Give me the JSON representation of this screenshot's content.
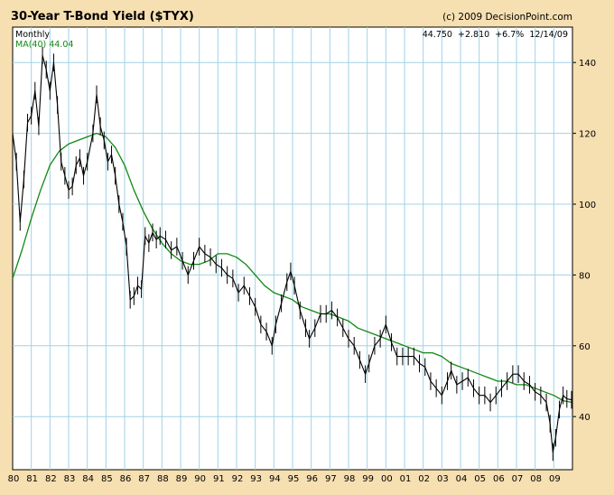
{
  "header": {
    "title": "30-Year T-Bond Yield ($TYX)",
    "copyright": "(c) 2009 DecisionPoint.com"
  },
  "info": {
    "period": "Monthly",
    "ma_label": "MA(40) 44.04",
    "quote": "44.750  +2.810  +6.7%  12/14/09"
  },
  "colors": {
    "background": "#f6dfb1",
    "plot_bg": "#ffffff",
    "grid": "#9fd3e6",
    "price": "#000000",
    "ma": "#118811",
    "axis": "#000000"
  },
  "chart_data": {
    "type": "line",
    "title": "30-Year T-Bond Yield ($TYX)",
    "xlabel": "",
    "ylabel": "",
    "x_range": [
      1980.0,
      2010.0
    ],
    "ylim": [
      25,
      150
    ],
    "y_ticks": [
      40,
      60,
      80,
      100,
      120,
      140
    ],
    "x_tick_labels": [
      "80",
      "81",
      "82",
      "83",
      "84",
      "85",
      "86",
      "87",
      "88",
      "89",
      "90",
      "91",
      "92",
      "93",
      "94",
      "95",
      "96",
      "97",
      "98",
      "99",
      "00",
      "01",
      "02",
      "03",
      "04",
      "05",
      "06",
      "07",
      "08",
      "09"
    ],
    "grid": true,
    "legend": "top-left",
    "series": [
      {
        "name": "",
        "style": "price",
        "x": [
          1980.0,
          1980.2,
          1980.4,
          1980.6,
          1980.8,
          1981.0,
          1981.2,
          1981.4,
          1981.6,
          1981.8,
          1982.0,
          1982.2,
          1982.4,
          1982.6,
          1982.8,
          1983.0,
          1983.2,
          1983.4,
          1983.6,
          1983.8,
          1984.0,
          1984.3,
          1984.5,
          1984.7,
          1984.9,
          1985.1,
          1985.3,
          1985.5,
          1985.7,
          1985.9,
          1986.1,
          1986.3,
          1986.5,
          1986.7,
          1986.9,
          1987.1,
          1987.3,
          1987.5,
          1987.7,
          1987.9,
          1988.2,
          1988.5,
          1988.8,
          1989.1,
          1989.4,
          1989.7,
          1990.0,
          1990.3,
          1990.6,
          1990.9,
          1991.2,
          1991.5,
          1991.8,
          1992.1,
          1992.4,
          1992.7,
          1993.0,
          1993.3,
          1993.6,
          1993.9,
          1994.1,
          1994.4,
          1994.7,
          1994.9,
          1995.1,
          1995.4,
          1995.7,
          1995.9,
          1996.2,
          1996.5,
          1996.8,
          1997.1,
          1997.4,
          1997.7,
          1998.0,
          1998.3,
          1998.6,
          1998.9,
          1999.1,
          1999.4,
          1999.7,
          2000.0,
          2000.3,
          2000.6,
          2000.9,
          2001.2,
          2001.5,
          2001.8,
          2002.1,
          2002.4,
          2002.7,
          2003.0,
          2003.3,
          2003.5,
          2003.8,
          2004.1,
          2004.4,
          2004.7,
          2005.0,
          2005.3,
          2005.6,
          2005.9,
          2006.2,
          2006.5,
          2006.8,
          2007.1,
          2007.4,
          2007.7,
          2008.0,
          2008.3,
          2008.6,
          2008.8,
          2008.95,
          2009.1,
          2009.3,
          2009.5,
          2009.7,
          2009.95
        ],
        "values": [
          120,
          112,
          95,
          107,
          123,
          125,
          132,
          122,
          142,
          138,
          132,
          140,
          128,
          112,
          108,
          104,
          105,
          111,
          113,
          108,
          112,
          120,
          131,
          122,
          118,
          112,
          114,
          108,
          100,
          95,
          88,
          73,
          74,
          77,
          76,
          91,
          89,
          92,
          90,
          91,
          90,
          87,
          88,
          84,
          80,
          84,
          88,
          86,
          85,
          83,
          82,
          80,
          79,
          75,
          77,
          74,
          71,
          66,
          64,
          60,
          66,
          72,
          78,
          81,
          77,
          70,
          65,
          62,
          65,
          69,
          69,
          70,
          68,
          65,
          62,
          60,
          56,
          52,
          55,
          60,
          62,
          66,
          61,
          57,
          57,
          57,
          57,
          55,
          54,
          50,
          48,
          46,
          50,
          53,
          49,
          50,
          51,
          48,
          46,
          46,
          44,
          46,
          48,
          50,
          52,
          52,
          50,
          49,
          47,
          46,
          44,
          38,
          30,
          34,
          42,
          46,
          45,
          44.75
        ]
      },
      {
        "name": "MA(40) 44.04",
        "style": "ma",
        "x": [
          1980.0,
          1980.5,
          1981.0,
          1981.5,
          1982.0,
          1982.5,
          1983.0,
          1983.5,
          1984.0,
          1984.5,
          1985.0,
          1985.5,
          1986.0,
          1986.5,
          1987.0,
          1987.5,
          1988.0,
          1988.5,
          1989.0,
          1989.5,
          1990.0,
          1990.5,
          1991.0,
          1991.5,
          1992.0,
          1992.5,
          1993.0,
          1993.5,
          1994.0,
          1994.5,
          1995.0,
          1995.5,
          1996.0,
          1996.5,
          1997.0,
          1997.5,
          1998.0,
          1998.5,
          1999.0,
          1999.5,
          2000.0,
          2000.5,
          2001.0,
          2001.5,
          2002.0,
          2002.5,
          2003.0,
          2003.5,
          2004.0,
          2004.5,
          2005.0,
          2005.5,
          2006.0,
          2006.5,
          2007.0,
          2007.5,
          2008.0,
          2008.5,
          2009.0,
          2009.5,
          2009.95
        ],
        "values": [
          79,
          87,
          96,
          104,
          111,
          115,
          117,
          118,
          119,
          120,
          119,
          116,
          111,
          104,
          98,
          93,
          89,
          86,
          84,
          83,
          83,
          84,
          86,
          86,
          85,
          83,
          80,
          77,
          75,
          74,
          73,
          71,
          70,
          69,
          69,
          68,
          67,
          65,
          64,
          63,
          62,
          61,
          60,
          59,
          58,
          58,
          57,
          55,
          54,
          53,
          52,
          51,
          50,
          50,
          49,
          49,
          48,
          47,
          46,
          44.5,
          44.04
        ]
      }
    ]
  }
}
